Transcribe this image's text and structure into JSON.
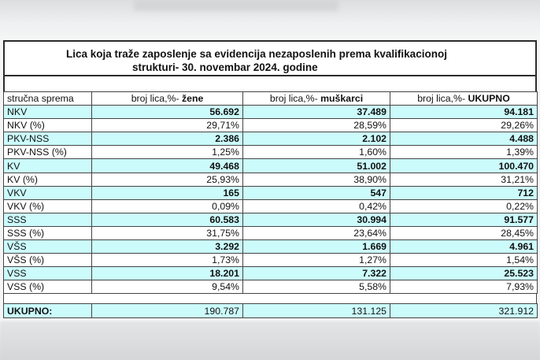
{
  "title": {
    "line1": "Lica koja traže zaposlenje sa evidencija nezaposlenih prema kvalifikacionoj",
    "line2": "strukturi- 30. novembar 2024. godine"
  },
  "columns": {
    "c0": "stručna sprema",
    "c1_prefix": "broj lica,%- ",
    "c1_bold": "žene",
    "c2_prefix": "broj lica,%- ",
    "c2_bold": "muškarci",
    "c3_prefix": "broj lica,%- ",
    "c3_bold": "UKUPNO"
  },
  "rows": [
    {
      "label": "NKV",
      "zene": "56.692",
      "muskarci": "37.489",
      "ukupno": "94.181"
    },
    {
      "label": "NKV (%)",
      "zene": "29,71%",
      "muskarci": "28,59%",
      "ukupno": "29,26%"
    },
    {
      "label": "PKV-NSS",
      "zene": "2.386",
      "muskarci": "2.102",
      "ukupno": "4.488"
    },
    {
      "label": "PKV-NSS (%)",
      "zene": "1,25%",
      "muskarci": "1,60%",
      "ukupno": "1,39%"
    },
    {
      "label": "KV",
      "zene": "49.468",
      "muskarci": "51.002",
      "ukupno": "100.470"
    },
    {
      "label": "KV (%)",
      "zene": "25,93%",
      "muskarci": "38,90%",
      "ukupno": "31,21%"
    },
    {
      "label": "VKV",
      "zene": "165",
      "muskarci": "547",
      "ukupno": "712"
    },
    {
      "label": "VKV (%)",
      "zene": "0,09%",
      "muskarci": "0,42%",
      "ukupno": "0,22%"
    },
    {
      "label": "SSS",
      "zene": "60.583",
      "muskarci": "30.994",
      "ukupno": "91.577"
    },
    {
      "label": "SSS (%)",
      "zene": "31,75%",
      "muskarci": "23,64%",
      "ukupno": "28,45%"
    },
    {
      "label": "VŠS",
      "zene": "3.292",
      "muskarci": "1.669",
      "ukupno": "4.961"
    },
    {
      "label": "VŠS (%)",
      "zene": "1,73%",
      "muskarci": "1,27%",
      "ukupno": "1,54%"
    },
    {
      "label": "VSS",
      "zene": "18.201",
      "muskarci": "7.322",
      "ukupno": "25.523"
    },
    {
      "label": "VSS (%)",
      "zene": "9,54%",
      "muskarci": "5,58%",
      "ukupno": "7,93%"
    }
  ],
  "total": {
    "label": "UKUPNO:",
    "zene": "190.787",
    "muskarci": "131.125",
    "ukupno": "321.912"
  },
  "colors": {
    "cyan_row": "#ccfbfc",
    "border": "#444444"
  }
}
